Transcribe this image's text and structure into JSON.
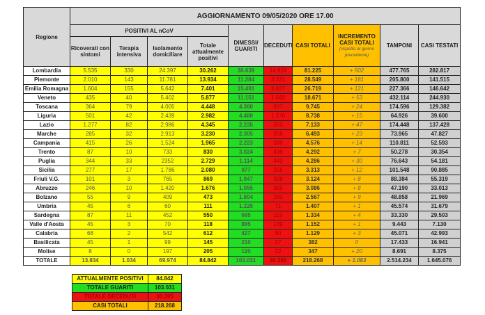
{
  "header": {
    "title": "AGGIORNAMENTO 09/05/2020 ORE 17.00",
    "regione": "Regione",
    "positivi_group": "POSITIVI AL nCoV",
    "columns": [
      "Ricoverati con sintomi",
      "Terapia intensiva",
      "Isolamento domiciliare",
      "Totale attualmente positivi",
      "DIMESSI/ GUARITI",
      "DECEDUTI",
      "CASI TOTALI",
      "INCREMENTO CASI TOTALI",
      "TAMPONI",
      "CASI TESTATI"
    ],
    "incremento_note": "(rispetto al giorno precedente)"
  },
  "colors": {
    "yellow": "#ffff00",
    "green": "#22dd22",
    "red": "#ee1111",
    "orange": "#ffc000",
    "gray": "#d0d0d0"
  },
  "rows": [
    [
      "Lombardia",
      "5.535",
      "330",
      "24.397",
      "30.262",
      "36.039",
      "14.924",
      "81.225",
      "+ 502",
      "477.765",
      "282.817"
    ],
    [
      "Piemonte",
      "2.010",
      "143",
      "11.781",
      "13.934",
      "11.284",
      "3.331",
      "28.549",
      "+ 181",
      "205.800",
      "141.515"
    ],
    [
      "Emilia Romagna",
      "1.604",
      "155",
      "5.642",
      "7.401",
      "15.491",
      "3.827",
      "26.719",
      "+ 121",
      "227.366",
      "146.642"
    ],
    [
      "Veneto",
      "435",
      "40",
      "5.402",
      "5.877",
      "11.151",
      "1.643",
      "18.671",
      "+ 53",
      "432.114",
      "244.930"
    ],
    [
      "Toscana",
      "364",
      "79",
      "4.005",
      "4.448",
      "4.360",
      "937",
      "9.745",
      "+ 24",
      "174.596",
      "129.382"
    ],
    [
      "Liguria",
      "501",
      "42",
      "2.439",
      "2.982",
      "4.480",
      "1.276",
      "8.738",
      "+ 15",
      "64.926",
      "39.600"
    ],
    [
      "Lazio",
      "1.277",
      "82",
      "2.986",
      "4.345",
      "2.235",
      "553",
      "7.133",
      "+ 47",
      "174.448",
      "137.428"
    ],
    [
      "Marche",
      "285",
      "32",
      "2.913",
      "3.230",
      "2.305",
      "958",
      "6.493",
      "+ 23",
      "73.965",
      "47.827"
    ],
    [
      "Campania",
      "415",
      "26",
      "1.524",
      "1.965",
      "2.223",
      "388",
      "4.576",
      "+ 14",
      "110.811",
      "52.593"
    ],
    [
      "Trento",
      "87",
      "10",
      "733",
      "830",
      "3.024",
      "438",
      "4.292",
      "+ 7",
      "50.278",
      "30.354"
    ],
    [
      "Puglia",
      "344",
      "33",
      "2352",
      "2.729",
      "1.114",
      "443",
      "4.286",
      "+ 30",
      "76.643",
      "54.181"
    ],
    [
      "Sicilia",
      "277",
      "17",
      "1.786",
      "2.080",
      "977",
      "256",
      "3.313",
      "+ 12",
      "101.548",
      "90.885"
    ],
    [
      "Friuli V.G.",
      "101",
      "3",
      "765",
      "869",
      "1.947",
      "308",
      "3.124",
      "+ 8",
      "88.384",
      "55.319"
    ],
    [
      "Abruzzo",
      "246",
      "10",
      "1.420",
      "1.676",
      "1.055",
      "355",
      "3.086",
      "+ 8",
      "47.190",
      "33.013"
    ],
    [
      "Bolzano",
      "55",
      "9",
      "409",
      "473",
      "1.804",
      "290",
      "2.567",
      "+ 9",
      "48.858",
      "21.969"
    ],
    [
      "Umbria",
      "45",
      "6",
      "60",
      "111",
      "1.225",
      "71",
      "1.407",
      "+ 1",
      "45.574",
      "31.679"
    ],
    [
      "Sardegna",
      "87",
      "11",
      "452",
      "550",
      "665",
      "119",
      "1.334",
      "+ 4",
      "33.330",
      "29.503"
    ],
    [
      "Valle d'Aosta",
      "45",
      "3",
      "70",
      "118",
      "895",
      "139",
      "1.152",
      "+ 1",
      "9.443",
      "7.130"
    ],
    [
      "Calabria",
      "68",
      "2",
      "542",
      "612",
      "427",
      "90",
      "1.129",
      "+ 3",
      "45.071",
      "42.993"
    ],
    [
      "Basilicata",
      "45",
      "1",
      "99",
      "145",
      "210",
      "27",
      "382",
      "0",
      "17.433",
      "16.941"
    ],
    [
      "Molise",
      "8",
      "0",
      "197",
      "205",
      "120",
      "22",
      "347",
      "+ 20",
      "8.691",
      "8.375"
    ]
  ],
  "totale": [
    "TOTALE",
    "13.834",
    "1.034",
    "69.974",
    "84.842",
    "103.031",
    "30.395",
    "218.268",
    "+ 1.083",
    "2.514.234",
    "1.645.076"
  ],
  "summary": [
    {
      "label": "ATTUALMENTE POSITIVI",
      "value": "84.842",
      "color": "#ffff00"
    },
    {
      "label": "TOTALE GUARITI",
      "value": "103.031",
      "color": "#22dd22"
    },
    {
      "label": "TOTALE DECEDUTI",
      "value": "30.395",
      "color": "#ee1111"
    },
    {
      "label": "CASI TOTALI",
      "value": "218.268",
      "color": "#ffc000"
    }
  ]
}
